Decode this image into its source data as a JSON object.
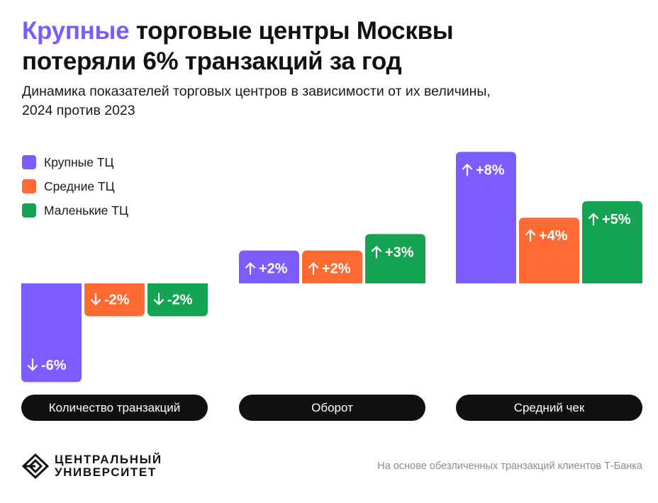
{
  "title": {
    "highlight": "Крупные",
    "line1_rest": " торговые центры Москвы",
    "line2": "потеряли 6% транзакций за год"
  },
  "subtitle": {
    "line1": "Динамика показателей торговых центров в зависимости от их величины,",
    "line2": "2024 против 2023"
  },
  "colors": {
    "large": "#7a5cff",
    "medium": "#ff6a33",
    "small": "#14a352",
    "pill": "#111111"
  },
  "chart_data": {
    "type": "bar",
    "categories": [
      "Количество транзакций",
      "Оборот",
      "Средний чек"
    ],
    "series": [
      {
        "name": "Крупные ТЦ",
        "color": "#7a5cff",
        "values": [
          -6,
          2,
          8
        ],
        "labels": [
          "-6%",
          "+2%",
          "+8%"
        ]
      },
      {
        "name": "Средние ТЦ",
        "color": "#ff6a33",
        "values": [
          -2,
          2,
          4
        ],
        "labels": [
          "-2%",
          "+2%",
          "+4%"
        ]
      },
      {
        "name": "Маленькие ТЦ",
        "color": "#14a352",
        "values": [
          -2,
          3,
          5
        ],
        "labels": [
          "-2%",
          "+3%",
          "+5%"
        ]
      }
    ],
    "unit": "%",
    "legend_position": "top-left",
    "grid": false
  },
  "logo": {
    "line1": "ЦЕНТРАЛЬНЫЙ",
    "line2": "УНИВЕРСИТЕТ"
  },
  "source": "На основе обезличенных транзакций клиентов Т-Банка"
}
